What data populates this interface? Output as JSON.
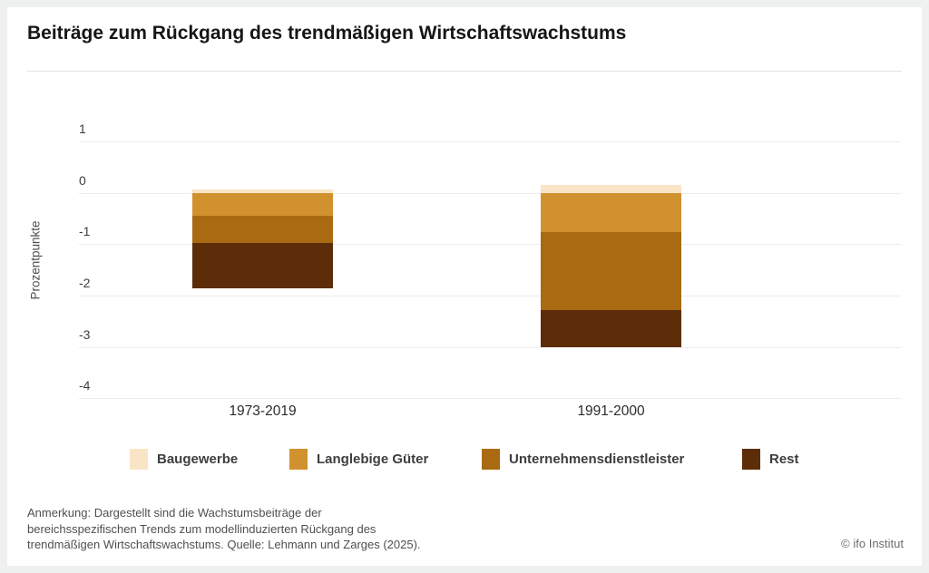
{
  "header": {
    "title": "Beiträge zum Rückgang des trendmäßigen Wirtschaftswachstums"
  },
  "chart_data": {
    "type": "bar",
    "stacked": true,
    "orientation": "vertical",
    "title": "Beiträge zum Rückgang des trendmäßigen Wirtschaftswachstums",
    "ylabel": "Prozentpunkte",
    "ylim": [
      -4,
      1
    ],
    "yticks": [
      1,
      0,
      -1,
      -2,
      -3,
      -4
    ],
    "grid": "horizontal",
    "legend_position": "bottom",
    "categories": [
      "1973-2019",
      "1991-2000"
    ],
    "series": [
      {
        "name": "Baugewerbe",
        "color": "#f9e5c5",
        "values": [
          0.07,
          0.16
        ]
      },
      {
        "name": "Langlebige Güter",
        "color": "#d2912f",
        "values": [
          -0.45,
          -0.77
        ]
      },
      {
        "name": "Unternehmensdienstleister",
        "color": "#a96a12",
        "values": [
          -0.52,
          -1.52
        ]
      },
      {
        "name": "Rest",
        "color": "#5c2d08",
        "values": [
          -0.89,
          -0.71
        ]
      }
    ]
  },
  "footer": {
    "note_lines": [
      "Anmerkung: Dargestellt sind die Wachstumsbeiträge der",
      "bereichsspezifischen Trends zum modellinduzierten Rückgang des",
      "trendmäßigen Wirtschaftswachstums. Quelle: Lehmann und Zarges (2025)."
    ],
    "copyright": "© ifo Institut"
  }
}
